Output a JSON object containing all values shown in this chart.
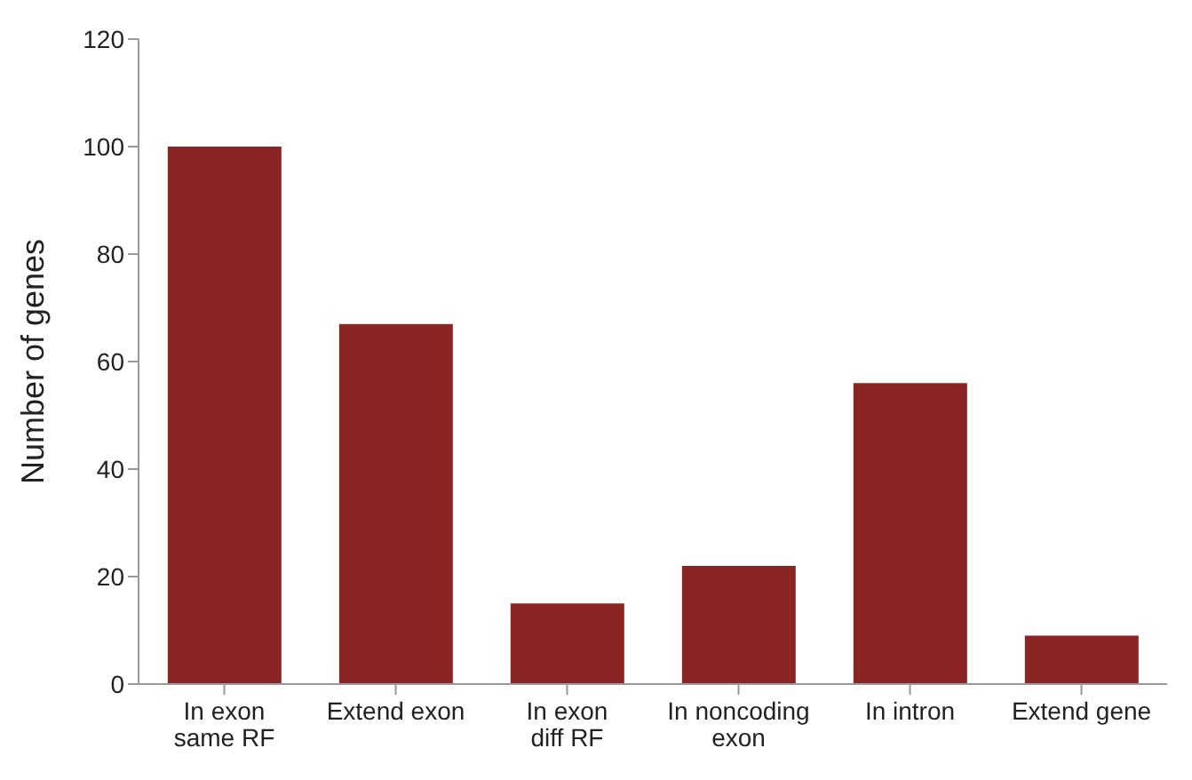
{
  "chart_data": {
    "type": "bar",
    "ylabel": "Number of genes",
    "categories": [
      "In exon same RF",
      "Extend exon",
      "In exon diff RF",
      "In noncoding exon",
      "In intron",
      "Extend gene"
    ],
    "values": [
      100,
      67,
      15,
      22,
      56,
      9
    ],
    "color": "#8b2523",
    "ylim": [
      0,
      120
    ],
    "yticks": [
      0,
      20,
      40,
      60,
      80,
      100,
      120
    ],
    "grid": false,
    "legend": false
  }
}
